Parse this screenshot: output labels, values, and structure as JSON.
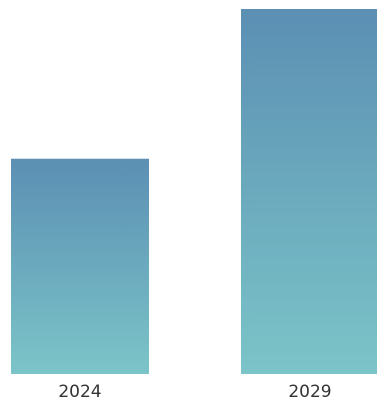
{
  "chart_data": {
    "type": "bar",
    "categories": [
      "2024",
      "2029"
    ],
    "values": [
      2.3,
      3.9
    ],
    "ylim": [
      0,
      3.9
    ],
    "grid": false,
    "legend": "none",
    "colors": {
      "bar_gradient_top": "#5b8fb3",
      "bar_gradient_bottom": "#7bc4c8"
    }
  }
}
